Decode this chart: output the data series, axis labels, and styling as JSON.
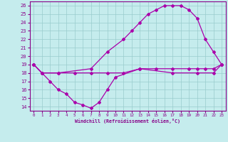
{
  "xlabel": "Windchill (Refroidissement éolien,°C)",
  "bg_color": "#c5eced",
  "line_color": "#aa00aa",
  "grid_color": "#99cccc",
  "xlim": [
    -0.5,
    23.5
  ],
  "ylim": [
    13.5,
    26.5
  ],
  "xticks": [
    0,
    1,
    2,
    3,
    4,
    5,
    6,
    7,
    8,
    9,
    10,
    11,
    12,
    13,
    14,
    15,
    16,
    17,
    18,
    19,
    20,
    21,
    22,
    23
  ],
  "yticks": [
    14,
    15,
    16,
    17,
    18,
    19,
    20,
    21,
    22,
    23,
    24,
    25,
    26
  ],
  "line1_x": [
    0,
    1,
    2,
    3,
    4,
    5,
    6,
    7,
    8,
    9,
    10,
    13,
    17,
    20,
    22,
    23
  ],
  "line1_y": [
    19,
    18,
    17,
    16,
    15.5,
    14.5,
    14.2,
    13.8,
    14.5,
    16,
    17.5,
    18.5,
    18,
    18,
    18,
    19
  ],
  "line2_x": [
    0,
    1,
    3,
    5,
    7,
    9,
    11,
    13,
    15,
    17,
    19,
    20,
    21,
    22,
    23
  ],
  "line2_y": [
    19,
    18,
    18,
    18,
    18,
    18,
    18,
    18.5,
    18.5,
    18.5,
    18.5,
    18.5,
    18.5,
    18.5,
    19
  ],
  "line3_x": [
    0,
    1,
    3,
    7,
    9,
    11,
    12,
    13,
    14,
    15,
    16,
    17,
    18,
    19,
    20,
    21,
    22,
    23
  ],
  "line3_y": [
    19,
    18,
    18,
    18.5,
    20.5,
    22,
    23,
    24,
    25,
    25.5,
    26,
    26,
    26,
    25.5,
    24.5,
    22,
    20.5,
    19
  ]
}
